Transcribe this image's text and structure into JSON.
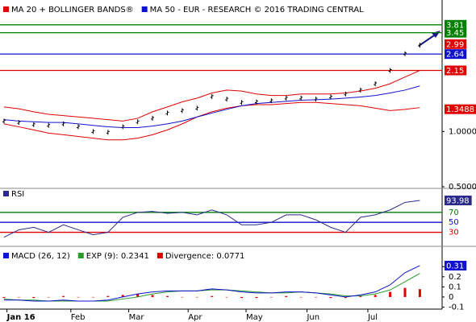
{
  "chart_data": [
    {
      "type": "ohlc",
      "x": [
        0,
        1,
        2,
        3,
        4,
        5,
        6,
        7,
        8,
        9,
        10,
        11,
        12,
        13,
        14,
        15,
        16,
        17,
        18,
        19,
        20,
        21,
        22,
        23,
        24,
        25,
        26,
        27,
        28
      ],
      "xlim": [
        -0.27,
        29.5
      ],
      "log_scale": true,
      "ylim": [
        0.5,
        5.2
      ],
      "yticks": [
        {
          "value": 1,
          "label": "1.0000"
        },
        {
          "value": 0.5,
          "label": "0.5000"
        }
      ],
      "price": {
        "color": "#000000",
        "values": [
          1.14,
          1.12,
          1.09,
          1.08,
          1.1,
          1.06,
          1.0,
          0.99,
          1.06,
          1.13,
          1.18,
          1.26,
          1.3,
          1.34,
          1.55,
          1.5,
          1.44,
          1.45,
          1.47,
          1.52,
          1.52,
          1.5,
          1.54,
          1.6,
          1.68,
          1.82,
          2.15,
          2.65,
          2.95
        ]
      },
      "series": [
        {
          "name": "MA 20 + BOLLINGER BANDS®",
          "color": "#e00000",
          "upper": [
            1.36,
            1.33,
            1.28,
            1.24,
            1.22,
            1.2,
            1.18,
            1.16,
            1.14,
            1.18,
            1.28,
            1.36,
            1.45,
            1.52,
            1.62,
            1.68,
            1.66,
            1.6,
            1.57,
            1.57,
            1.6,
            1.6,
            1.6,
            1.62,
            1.66,
            1.72,
            1.82,
            1.98,
            2.15
          ],
          "lower": [
            1.1,
            1.06,
            1.02,
            0.98,
            0.96,
            0.94,
            0.92,
            0.9,
            0.9,
            0.92,
            0.96,
            1.02,
            1.1,
            1.2,
            1.28,
            1.34,
            1.38,
            1.4,
            1.4,
            1.42,
            1.44,
            1.44,
            1.42,
            1.4,
            1.38,
            1.34,
            1.3,
            1.32,
            1.3488
          ]
        },
        {
          "name": "MA 50 - EUR - RESEARCH © 2016 TRADING CENTRAL",
          "color": "#1010d0",
          "values": [
            1.16,
            1.14,
            1.13,
            1.12,
            1.12,
            1.1,
            1.08,
            1.06,
            1.05,
            1.05,
            1.07,
            1.1,
            1.14,
            1.2,
            1.26,
            1.32,
            1.38,
            1.42,
            1.44,
            1.46,
            1.48,
            1.49,
            1.5,
            1.52,
            1.54,
            1.57,
            1.62,
            1.68,
            1.77
          ]
        }
      ],
      "levels": [
        {
          "value": 3.81,
          "label": "3.81",
          "color": "#008000",
          "line": true
        },
        {
          "value": 3.45,
          "label": "3.45",
          "color": "#008000",
          "line": true
        },
        {
          "value": 2.99,
          "label": "2.99",
          "color": "#e00000",
          "line": false
        },
        {
          "value": 2.64,
          "label": "2.64",
          "color": "#1010d0",
          "line": true
        },
        {
          "value": 2.15,
          "label": "2.15",
          "color": "#e00000",
          "line": true
        }
      ]
    },
    {
      "type": "line",
      "x": [
        0,
        1,
        2,
        3,
        4,
        5,
        6,
        7,
        8,
        9,
        10,
        11,
        12,
        13,
        14,
        15,
        16,
        17,
        18,
        19,
        20,
        21,
        22,
        23,
        24,
        25,
        26,
        27,
        28
      ],
      "xlim": [
        -0.27,
        29.5
      ],
      "ylim": [
        5,
        115
      ],
      "series": [
        {
          "name": "RSI",
          "color": "#2a2a8a",
          "values": [
            20,
            35,
            40,
            30,
            45,
            35,
            25,
            30,
            60,
            70,
            72,
            68,
            70,
            65,
            75,
            65,
            45,
            45,
            50,
            65,
            65,
            55,
            40,
            30,
            60,
            65,
            75,
            90,
            93.98
          ]
        }
      ],
      "levels": [
        {
          "value": 70,
          "color": "#008000"
        },
        {
          "value": 50,
          "color": "#1010d0"
        },
        {
          "value": 30,
          "color": "#e00000"
        }
      ]
    },
    {
      "type": "macd",
      "x": [
        0,
        1,
        2,
        3,
        4,
        5,
        6,
        7,
        8,
        9,
        10,
        11,
        12,
        13,
        14,
        15,
        16,
        17,
        18,
        19,
        20,
        21,
        22,
        23,
        24,
        25,
        26,
        27,
        28
      ],
      "xlim": [
        -0.27,
        29.5
      ],
      "ylim": [
        -0.12,
        0.485
      ],
      "yticks": [
        -0.1,
        0,
        0.1,
        0.2,
        0.3
      ],
      "xticks": [
        {
          "value": 0.2,
          "label": "Jan 16"
        },
        {
          "value": 4.5,
          "label": "Feb"
        },
        {
          "value": 8.4,
          "label": "Mar"
        },
        {
          "value": 12.4,
          "label": "Apr"
        },
        {
          "value": 16.3,
          "label": "May"
        },
        {
          "value": 20.4,
          "label": "Jun"
        },
        {
          "value": 24.5,
          "label": "Jul"
        }
      ],
      "series": [
        {
          "name": "MACD (26, 12)",
          "color": "#1010d0",
          "values": [
            -0.03,
            -0.03,
            -0.04,
            -0.04,
            -0.03,
            -0.04,
            -0.04,
            -0.03,
            0,
            0.03,
            0.05,
            0.06,
            0.06,
            0.06,
            0.08,
            0.07,
            0.05,
            0.04,
            0.04,
            0.05,
            0.05,
            0.04,
            0.02,
            0,
            0.02,
            0.05,
            0.12,
            0.24,
            0.31
          ]
        },
        {
          "name": "EXP (9): 0.2341",
          "color": "#2a9a2a",
          "values": [
            -0.02,
            -0.03,
            -0.03,
            -0.04,
            -0.04,
            -0.04,
            -0.04,
            -0.04,
            -0.02,
            0,
            0.03,
            0.05,
            0.06,
            0.06,
            0.07,
            0.07,
            0.06,
            0.05,
            0.04,
            0.04,
            0.05,
            0.04,
            0.03,
            0.01,
            0.01,
            0.03,
            0.07,
            0.15,
            0.2341
          ]
        },
        {
          "name": "Divergence: 0.0771",
          "color": "#e00000",
          "values": [
            -0.01,
            0,
            -0.01,
            0,
            0.01,
            0,
            0,
            0.01,
            0.02,
            0.03,
            0.02,
            0.01,
            0,
            0,
            0.01,
            0,
            -0.01,
            -0.01,
            0,
            0.01,
            0,
            0,
            -0.01,
            -0.01,
            0.01,
            0.02,
            0.05,
            0.09,
            0.0771
          ]
        }
      ]
    }
  ]
}
